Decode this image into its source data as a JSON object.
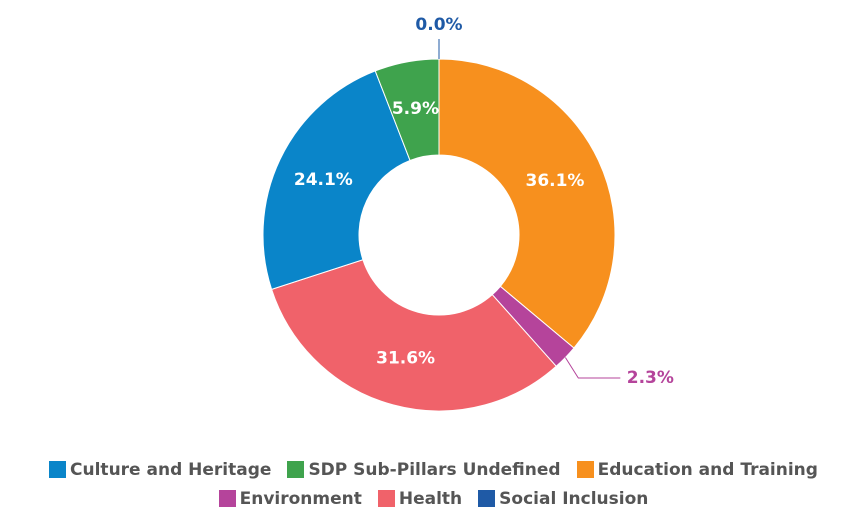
{
  "chart_data": {
    "type": "donut",
    "categories": [
      "Education and Training",
      "Environment",
      "Health",
      "Culture and Heritage",
      "SDP Sub-Pillars Undefined",
      "Social Inclusion"
    ],
    "values": [
      36.1,
      2.3,
      31.6,
      24.1,
      5.9,
      0.0
    ],
    "value_labels": [
      "36.1%",
      "2.3%",
      "31.6%",
      "24.1%",
      "5.9%",
      "0.0%"
    ],
    "colors": [
      "#f7901e",
      "#b5449b",
      "#f0626a",
      "#0a85c9",
      "#3fa34d",
      "#1f5aa6"
    ],
    "legend": "bottom"
  }
}
